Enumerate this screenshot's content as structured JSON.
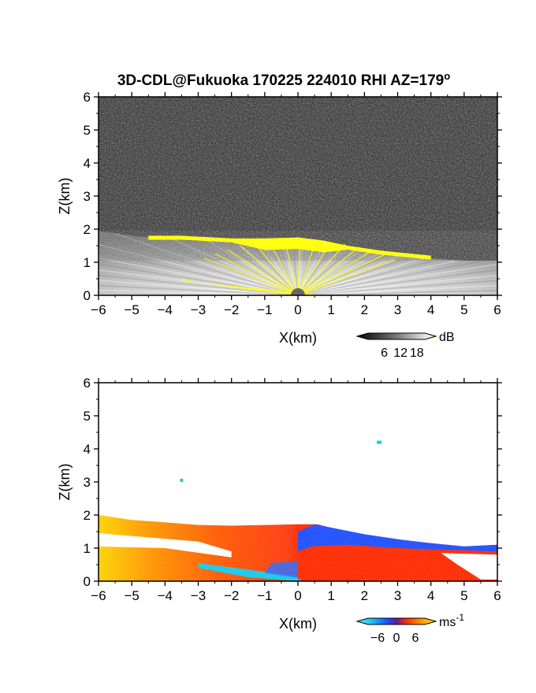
{
  "title": "3D-CDL@Fukuoka 170225 224010 RHI AZ=179",
  "title_superscript": "o",
  "colors": {
    "background_noise": "#2a2a2a",
    "echo_gray": "#bdbdbd",
    "strong_echo": "#ffff00",
    "velocity_negative": "#1f4fff",
    "velocity_near_zero_neg": "#19c8e6",
    "velocity_positive": "#ff2a00",
    "velocity_strong_positive": "#ffe600"
  },
  "chart_data": [
    {
      "type": "heatmap",
      "panel": "intensity",
      "title": "3D-CDL@Fukuoka 170225 224010 RHI AZ=179o",
      "xlabel": "X(km)",
      "ylabel": "Z(km)",
      "xlim": [
        -6,
        6
      ],
      "ylim": [
        0,
        6
      ],
      "x_ticks": [
        "-6",
        "-5",
        "-4",
        "-3",
        "-2",
        "-1",
        "0",
        "1",
        "2",
        "3",
        "4",
        "5",
        "6"
      ],
      "y_ticks": [
        "0",
        "1",
        "2",
        "3",
        "4",
        "5",
        "6"
      ],
      "top_boundary_km": [
        [
          -6,
          1.95
        ],
        [
          -5,
          1.8
        ],
        [
          -4,
          1.7
        ],
        [
          -3,
          1.65
        ],
        [
          -2,
          1.65
        ],
        [
          -1,
          1.72
        ],
        [
          0,
          1.75
        ],
        [
          0.7,
          1.68
        ],
        [
          1.2,
          1.5
        ],
        [
          2,
          1.35
        ],
        [
          3,
          1.22
        ],
        [
          4,
          1.1
        ],
        [
          5,
          1.05
        ],
        [
          6,
          1.05
        ]
      ],
      "yellow_band_top_km": [
        [
          -4.5,
          1.8
        ],
        [
          -3.5,
          1.8
        ],
        [
          -2,
          1.72
        ],
        [
          -1,
          1.72
        ],
        [
          0,
          1.75
        ],
        [
          0.8,
          1.65
        ],
        [
          1.5,
          1.5
        ],
        [
          2.5,
          1.35
        ],
        [
          3.5,
          1.25
        ],
        [
          4,
          1.2
        ]
      ],
      "colorbar": {
        "unit": "dB",
        "ticks": [
          "6",
          "12",
          "18"
        ],
        "range": [
          0,
          21
        ]
      }
    },
    {
      "type": "heatmap",
      "panel": "doppler_velocity",
      "xlabel": "X(km)",
      "ylabel": "Z(km)",
      "xlim": [
        -6,
        6
      ],
      "ylim": [
        0,
        6
      ],
      "x_ticks": [
        "-6",
        "-5",
        "-4",
        "-3",
        "-2",
        "-1",
        "0",
        "1",
        "2",
        "3",
        "4",
        "5",
        "6"
      ],
      "y_ticks": [
        "0",
        "1",
        "2",
        "3",
        "4",
        "5",
        "6"
      ],
      "top_boundary_km": [
        [
          -6,
          2.0
        ],
        [
          -5,
          1.85
        ],
        [
          -4,
          1.78
        ],
        [
          -3,
          1.7
        ],
        [
          -2,
          1.68
        ],
        [
          -1,
          1.7
        ],
        [
          0,
          1.72
        ],
        [
          0.6,
          1.72
        ],
        [
          1.2,
          1.55
        ],
        [
          2,
          1.4
        ],
        [
          3,
          1.25
        ],
        [
          4,
          1.15
        ],
        [
          5,
          1.05
        ],
        [
          6,
          1.1
        ]
      ],
      "isolated_points_km": [
        [
          -3.5,
          3.05
        ],
        [
          2.42,
          4.2
        ]
      ],
      "colorbar": {
        "unit": "ms",
        "unit_superscript": "-1",
        "ticks": [
          "−6",
          "0",
          "6"
        ],
        "range": [
          -9,
          9
        ]
      }
    }
  ]
}
